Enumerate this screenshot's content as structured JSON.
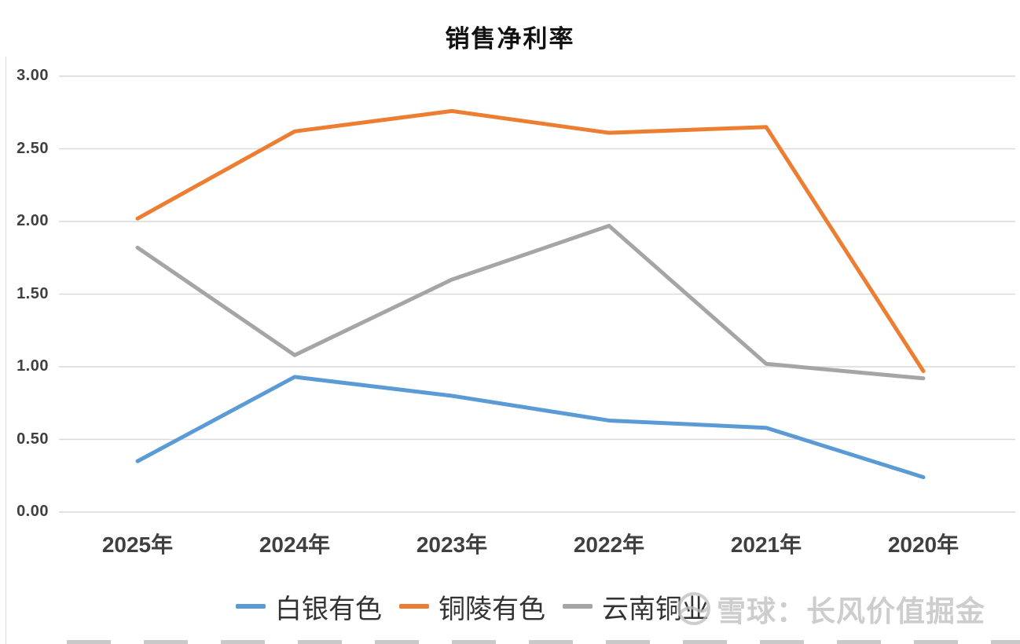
{
  "chart_data": {
    "type": "line",
    "title": "销售净利率",
    "categories": [
      "2025年",
      "2024年",
      "2023年",
      "2022年",
      "2021年",
      "2020年"
    ],
    "series": [
      {
        "name": "白银有色",
        "color": "#5B9BD5",
        "values": [
          0.35,
          0.93,
          0.8,
          0.63,
          0.58,
          0.24
        ]
      },
      {
        "name": "铜陵有色",
        "color": "#ED7D31",
        "values": [
          2.02,
          2.62,
          2.76,
          2.61,
          2.65,
          0.97
        ]
      },
      {
        "name": "云南铜业",
        "color": "#A5A5A5",
        "values": [
          1.82,
          1.08,
          1.6,
          1.97,
          1.02,
          0.92
        ]
      }
    ],
    "xlabel": "",
    "ylabel": "",
    "ylim": [
      0,
      3
    ],
    "ytick_step": 0.5,
    "ytick_labels": [
      "0.00",
      "0.50",
      "1.00",
      "1.50",
      "2.00",
      "2.50",
      "3.00"
    ],
    "grid": true,
    "legend_position": "bottom"
  },
  "watermark": {
    "text": "雪球：长风价值掘金"
  },
  "colors": {
    "gridline": "#D9D9D9",
    "axis_text": "#404040",
    "background": "#FFFFFF"
  }
}
